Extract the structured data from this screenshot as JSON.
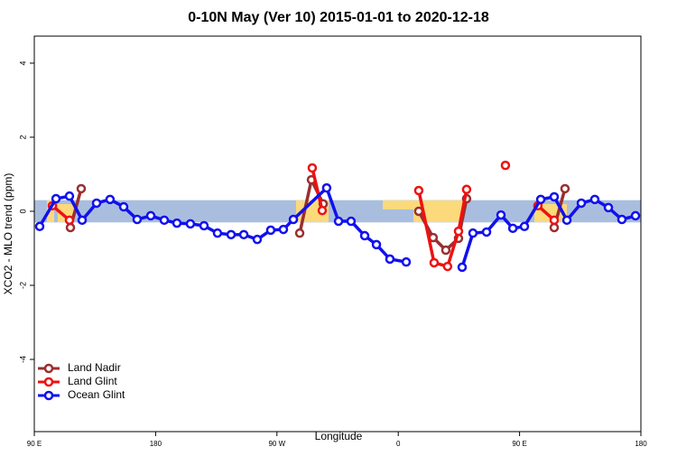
{
  "chart_data": {
    "type": "line",
    "title": "0-10N May (Ver 10)   2015-01-01 to 2020-12-18",
    "x_label": "Longitude",
    "y_label": "XCO2 - MLO trend (ppm)",
    "xlim": [
      90,
      540
    ],
    "ylim": [
      -5.95,
      4.73
    ],
    "xticks": [
      {
        "value": 90,
        "label": "90 E"
      },
      180,
      {
        "value": 270,
        "label": "90 W"
      },
      {
        "value": 360,
        "label": "0"
      },
      {
        "value": 450,
        "label": "90 E"
      },
      {
        "value": 540,
        "label": "180"
      }
    ],
    "yticks": [
      -4,
      -2,
      0,
      2,
      4
    ],
    "band": [
      -0.3,
      0.3
    ],
    "band_color": "#a9bedf",
    "legend": "bottom-left",
    "series": [
      {
        "name": "Land Nadir",
        "color": "#9a2f2f",
        "x": [
          116.8,
          124.8,
          null,
          286.9,
          295.6,
          304.3,
          null,
          375.2,
          385.9,
          395.3,
          404.7,
          410.7,
          null,
          475.7,
          483.7
        ],
        "values": [
          -0.44,
          0.61,
          null,
          -0.59,
          0.85,
          0.2,
          null,
          0.0,
          -0.71,
          -1.05,
          -0.73,
          0.34,
          null,
          -0.44,
          0.61
        ]
      },
      {
        "name": "Land Glint",
        "color": "#ee1111",
        "x": [
          103.4,
          116.1,
          null,
          296.2,
          303.6,
          null,
          375.2,
          386.6,
          396.6,
          404.7,
          410.7,
          null,
          439.5,
          null,
          463.6,
          475.7
        ],
        "values": [
          0.15,
          -0.24,
          null,
          1.17,
          0.02,
          null,
          0.56,
          -1.39,
          -1.49,
          -0.54,
          0.59,
          null,
          1.24,
          null,
          0.15,
          -0.24
        ]
      },
      {
        "name": "Ocean Glint",
        "color": "#1111ee",
        "x": [
          94.0,
          106.1,
          116.1,
          125.5,
          136.2,
          146.2,
          156.3,
          166.3,
          176.4,
          186.4,
          195.8,
          205.8,
          215.9,
          225.9,
          236.0,
          245.4,
          255.4,
          265.4,
          274.8,
          282.2,
          306.9,
          315.7,
          325.0,
          335.1,
          343.8,
          353.8,
          365.9,
          null,
          407.4,
          415.4,
          425.5,
          436.2,
          445.0,
          453.6,
          465.7,
          475.7,
          485.1,
          495.8,
          505.8,
          515.9,
          525.9,
          536.0
        ],
        "values": [
          -0.41,
          0.34,
          0.41,
          -0.24,
          0.22,
          0.32,
          0.12,
          -0.22,
          -0.12,
          -0.24,
          -0.32,
          -0.34,
          -0.39,
          -0.59,
          -0.63,
          -0.63,
          -0.76,
          -0.51,
          -0.49,
          -0.22,
          0.63,
          -0.27,
          -0.27,
          -0.66,
          -0.9,
          -1.29,
          -1.37,
          null,
          -1.51,
          -0.59,
          -0.56,
          -0.1,
          -0.46,
          -0.41,
          0.32,
          0.39,
          -0.24,
          0.22,
          0.32,
          0.1,
          -0.22,
          -0.12
        ]
      }
    ]
  }
}
